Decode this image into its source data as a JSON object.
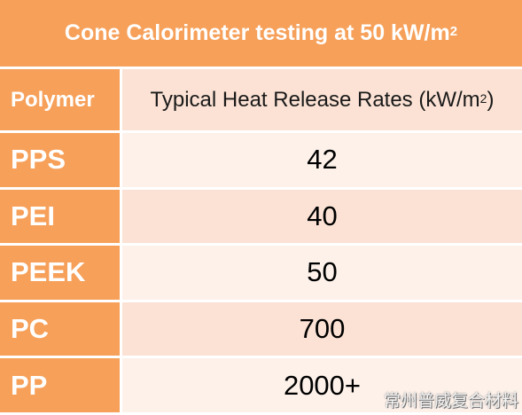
{
  "table": {
    "title": "Cone Calorimeter testing at 50 kW/m",
    "title_sup": "2",
    "header_polymer": "Polymer",
    "header_rate": "Typical Heat Release Rates (kW/m",
    "header_rate_sup": "2",
    "header_rate_close": ")",
    "rows": [
      {
        "polymer": "PPS",
        "rate": "42"
      },
      {
        "polymer": "PEI",
        "rate": "40"
      },
      {
        "polymer": "PEEK",
        "rate": "50"
      },
      {
        "polymer": "PC",
        "rate": "700"
      },
      {
        "polymer": "PP",
        "rate": "2000+"
      }
    ]
  },
  "watermark": "常州普威复合材料",
  "colors": {
    "accent_orange": "#f6a05a",
    "row_light": "#fbe2d4",
    "row_lighter": "#fdf1ea"
  }
}
